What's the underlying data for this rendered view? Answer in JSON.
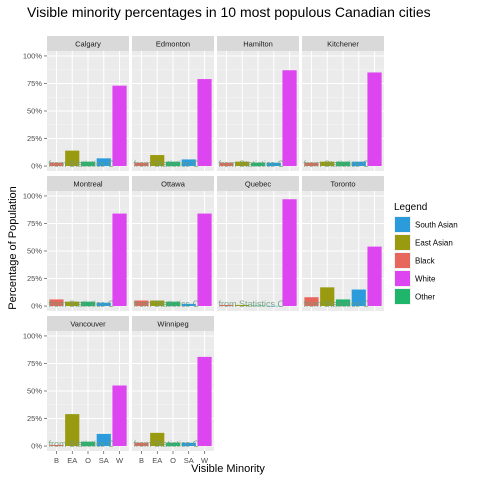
{
  "chart_data": {
    "type": "bar",
    "title": "Visible minority percentages in 10 most populous Canadian cities",
    "xlabel": "Visible Minority",
    "ylabel": "Percentage of Population",
    "ylim": [
      0,
      1
    ],
    "y_ticks": [
      "0%",
      "25%",
      "50%",
      "75%",
      "100%"
    ],
    "categories": [
      "B",
      "EA",
      "O",
      "SA",
      "W"
    ],
    "overlay_text": "a from Statistics C",
    "legend": {
      "title": "Legend",
      "position": "right",
      "entries": [
        {
          "label": "South Asian",
          "color": "#2b9bdc"
        },
        {
          "label": "East Asian",
          "color": "#9a9a10"
        },
        {
          "label": "Black",
          "color": "#e8675c"
        },
        {
          "label": "White",
          "color": "#dd45f0"
        },
        {
          "label": "Other",
          "color": "#1fb56b"
        }
      ]
    },
    "category_colors": {
      "B": "#e8675c",
      "EA": "#9a9a10",
      "O": "#1fb56b",
      "SA": "#2b9bdc",
      "W": "#dd45f0"
    },
    "panels": [
      {
        "city": "Calgary",
        "values": [
          0.03,
          0.14,
          0.04,
          0.07,
          0.73
        ]
      },
      {
        "city": "Edmonton",
        "values": [
          0.03,
          0.1,
          0.04,
          0.06,
          0.79
        ]
      },
      {
        "city": "Hamilton",
        "values": [
          0.03,
          0.04,
          0.03,
          0.03,
          0.87
        ]
      },
      {
        "city": "Kitchener",
        "values": [
          0.03,
          0.04,
          0.04,
          0.04,
          0.85
        ]
      },
      {
        "city": "Montreal",
        "values": [
          0.06,
          0.04,
          0.04,
          0.03,
          0.84
        ]
      },
      {
        "city": "Ottawa",
        "values": [
          0.05,
          0.05,
          0.04,
          0.02,
          0.84
        ]
      },
      {
        "city": "Quebec",
        "values": [
          0.01,
          0.01,
          0.005,
          0.002,
          0.97
        ]
      },
      {
        "city": "Toronto",
        "values": [
          0.08,
          0.17,
          0.06,
          0.15,
          0.54
        ]
      },
      {
        "city": "Vancouver",
        "values": [
          0.01,
          0.29,
          0.04,
          0.11,
          0.55
        ]
      },
      {
        "city": "Winnipeg",
        "values": [
          0.03,
          0.12,
          0.03,
          0.03,
          0.81
        ]
      }
    ]
  }
}
